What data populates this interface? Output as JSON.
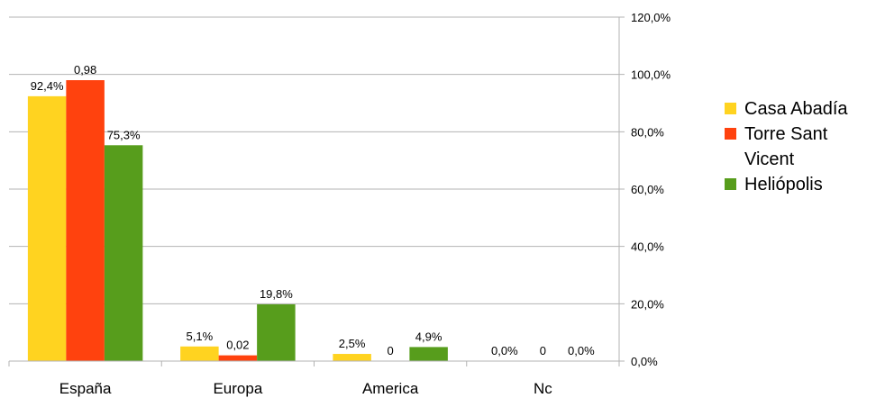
{
  "chart_data": {
    "type": "bar",
    "categories": [
      "España",
      "Europa",
      "America",
      "Nc"
    ],
    "series": [
      {
        "name": "Casa Abadía",
        "color": "#ffd320",
        "values": [
          92.4,
          5.1,
          2.5,
          0.0
        ],
        "labels": [
          "92,4%",
          "5,1%",
          "2,5%",
          "0,0%"
        ]
      },
      {
        "name": "Torre Sant Vicent",
        "legend_lines": [
          "Torre Sant",
          "Vicent"
        ],
        "color": "#ff420e",
        "values": [
          98,
          2,
          0,
          0
        ],
        "labels": [
          "0,98",
          "0,02",
          "0",
          "0"
        ]
      },
      {
        "name": "Heliópolis",
        "color": "#579d1c",
        "values": [
          75.3,
          19.8,
          4.9,
          0.0
        ],
        "labels": [
          "75,3%",
          "19,8%",
          "4,9%",
          "0,0%"
        ]
      }
    ],
    "y_ticks": [
      "0,0%",
      "20,0%",
      "40,0%",
      "60,0%",
      "80,0%",
      "100,0%",
      "120,0%"
    ],
    "ylim": [
      0,
      120
    ],
    "y_axis_side": "right",
    "grid": true,
    "legend_position": "right",
    "title": "",
    "xlabel": "",
    "ylabel": ""
  }
}
